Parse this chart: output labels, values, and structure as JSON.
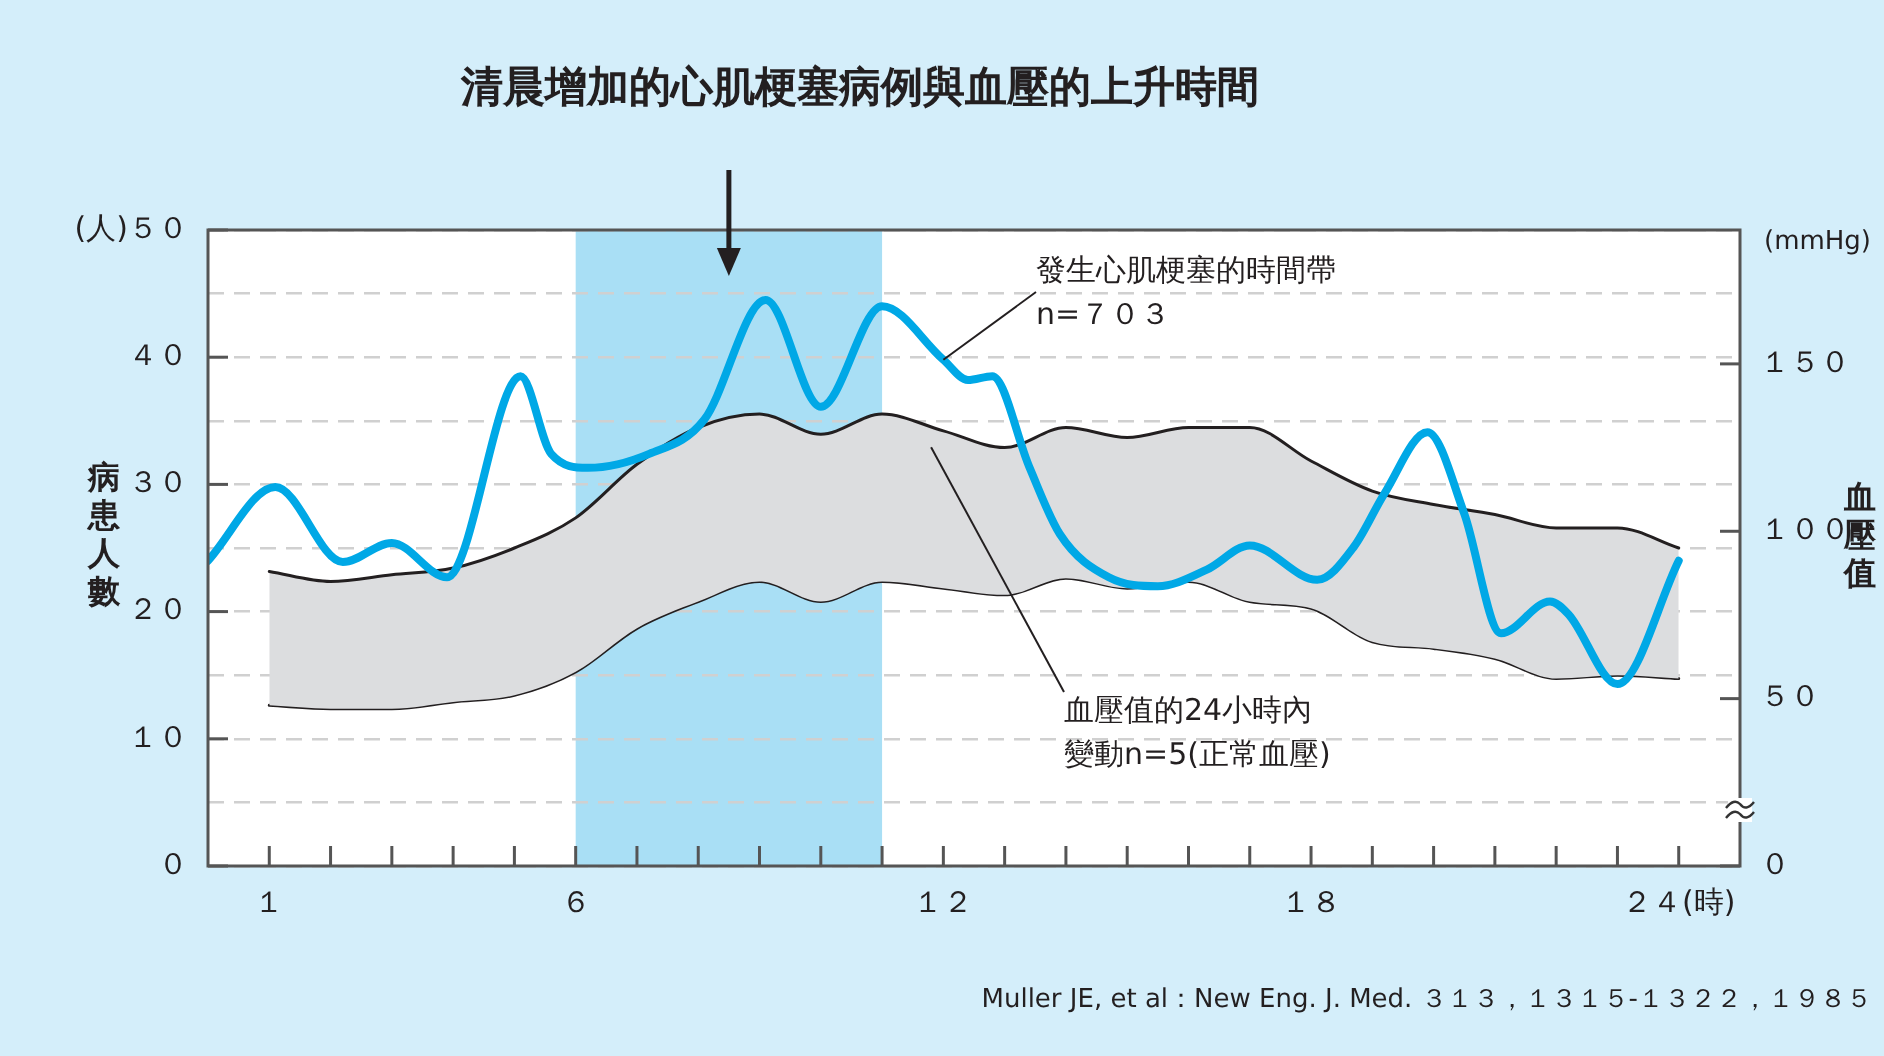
{
  "chart_data": {
    "type": "line",
    "title": "清晨增加的心肌梗塞病例與血壓的上升時間",
    "ylabel": "病患人數",
    "y2label": "血壓值",
    "annotations": [
      "(mmHg)",
      "Muller JE, et al：New Eng. J. Med. ３１３，１３１５-１３２２，１９８５"
    ],
    "xlim": [
      0,
      25
    ],
    "xticks": [
      {
        "value": 1,
        "label": "１"
      },
      {
        "value": 2,
        "label": null
      },
      {
        "value": 3,
        "label": null
      },
      {
        "value": 4,
        "label": null
      },
      {
        "value": 5,
        "label": null
      },
      {
        "value": 6,
        "label": "６"
      },
      {
        "value": 7,
        "label": null
      },
      {
        "value": 8,
        "label": null
      },
      {
        "value": 9,
        "label": null
      },
      {
        "value": 10,
        "label": null
      },
      {
        "value": 11,
        "label": null
      },
      {
        "value": 12,
        "label": "１２"
      },
      {
        "value": 13,
        "label": null
      },
      {
        "value": 14,
        "label": null
      },
      {
        "value": 15,
        "label": null
      },
      {
        "value": 16,
        "label": null
      },
      {
        "value": 17,
        "label": null
      },
      {
        "value": 18,
        "label": "１８"
      },
      {
        "value": 19,
        "label": null
      },
      {
        "value": 20,
        "label": null
      },
      {
        "value": 21,
        "label": null
      },
      {
        "value": 22,
        "label": null
      },
      {
        "value": 23,
        "label": null
      },
      {
        "value": 24,
        "label": "２４(時)"
      }
    ],
    "ylim": [
      0,
      50
    ],
    "yticks": [
      {
        "value": 0,
        "label": "０"
      },
      {
        "value": 5,
        "label": null
      },
      {
        "value": 10,
        "label": "１０"
      },
      {
        "value": 15,
        "label": null
      },
      {
        "value": 20,
        "label": "２０"
      },
      {
        "value": 25,
        "label": null
      },
      {
        "value": 30,
        "label": "３０"
      },
      {
        "value": 35,
        "label": null
      },
      {
        "value": 40,
        "label": "４０"
      },
      {
        "value": 45,
        "label": null
      },
      {
        "value": 50,
        "label": "(人)５０"
      }
    ],
    "y2lim": [
      0,
      190
    ],
    "y2ticks": [
      {
        "value": 0,
        "label": "０"
      },
      {
        "value": 50,
        "label": "５０"
      },
      {
        "value": 100,
        "label": "１００"
      },
      {
        "value": 150,
        "label": "１５０"
      }
    ],
    "grid": "y",
    "legend": false,
    "marker": "none",
    "bands": [
      {
        "axis": "x",
        "from": 6,
        "to": 11,
        "color": "#a9dff5"
      }
    ],
    "series": [
      {
        "name": "發生心肌梗塞的時間帶n=７０３",
        "type": "line",
        "color": "#00a8e6",
        "x": [
          0,
          1.1,
          2.2,
          3,
          3.9,
          5.1,
          5.6,
          6.2,
          7.2,
          8.1,
          9.1,
          10,
          11,
          12,
          12.4,
          12.8,
          13.4,
          13.9,
          14.7,
          15.5,
          16.3,
          17,
          18.1,
          18.7,
          19.2,
          19.9,
          20.5,
          21.1,
          21.9,
          22.2,
          23,
          24
        ],
        "values": [
          24,
          29.8,
          23.9,
          25.4,
          22.7,
          38.5,
          32.4,
          31.3,
          32.4,
          35.1,
          44.5,
          36.1,
          44,
          39.8,
          38.2,
          38.5,
          31.4,
          26.1,
          22.7,
          22,
          23.3,
          25.2,
          22.5,
          25.1,
          29.3,
          34.1,
          27.7,
          18.3,
          20.8,
          19.8,
          14.3,
          24
        ]
      },
      {
        "name": "血壓值的24小時內變動n=5(正常血壓)",
        "type": "line",
        "axis": "y2",
        "color": "#231f20",
        "x": [
          1,
          2,
          3,
          4,
          5,
          6,
          7,
          8,
          9,
          10,
          11,
          12,
          13,
          14,
          15,
          16,
          17,
          18,
          19,
          20,
          21,
          22,
          23,
          24
        ],
        "values": [
          88,
          85,
          87,
          89,
          95,
          104,
          120,
          131,
          135,
          129,
          135,
          130,
          125,
          131,
          128,
          131,
          131,
          121,
          112,
          108,
          105,
          101,
          101,
          95
        ],
        "upper": [
          88,
          85,
          87,
          89,
          95,
          104,
          120,
          131,
          135,
          129,
          135,
          130,
          125,
          131,
          128,
          131,
          131,
          121,
          112,
          108,
          105,
          101,
          101,
          95
        ],
        "lower": [
          48,
          47,
          47,
          49,
          51,
          58,
          71,
          79,
          85,
          79,
          85,
          83,
          81,
          86,
          83,
          85,
          79,
          77,
          67,
          65,
          62,
          56,
          57,
          56
        ]
      },
      {
        "type": "line",
        "axis": "y2",
        "color": "#231f20",
        "x": [
          1,
          2,
          3,
          4,
          5,
          6,
          7,
          8,
          9,
          10,
          11,
          12,
          13,
          14,
          15,
          16,
          17,
          18,
          19,
          20,
          21,
          22,
          23,
          24
        ],
        "values": [
          48,
          47,
          47,
          49,
          51,
          58,
          71,
          79,
          85,
          79,
          85,
          83,
          81,
          86,
          83,
          85,
          79,
          77,
          67,
          65,
          62,
          56,
          57,
          56
        ]
      }
    ]
  }
}
